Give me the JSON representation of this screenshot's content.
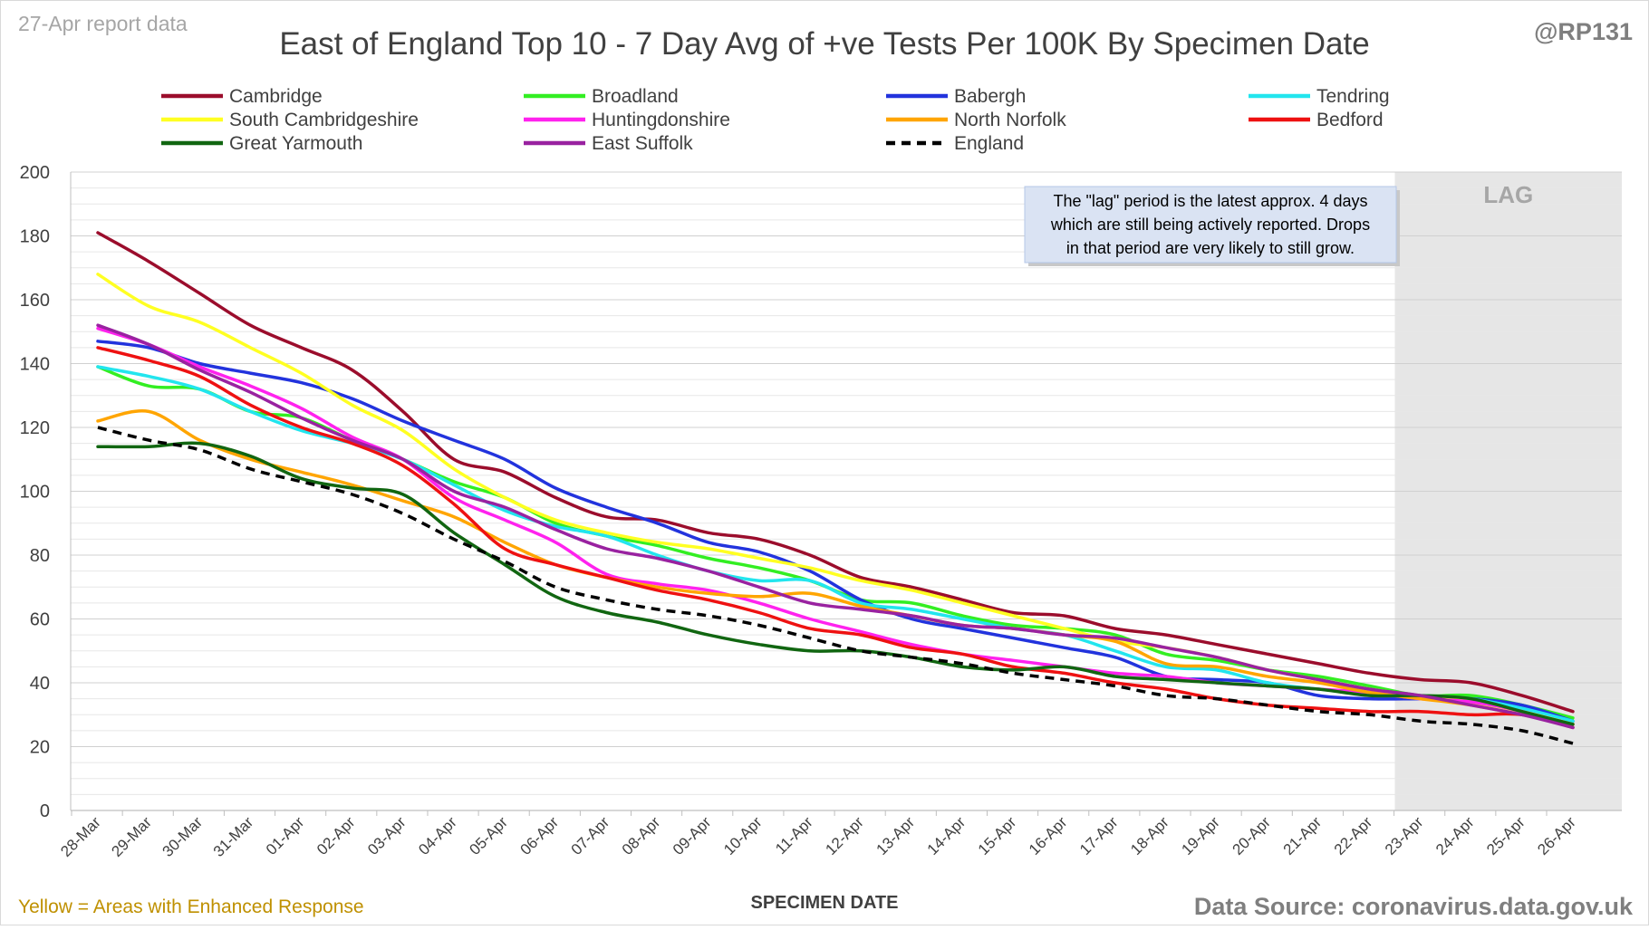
{
  "report_label": "27-Apr report data",
  "handle": "@RP131",
  "footer_left": "Yellow = Areas with Enhanced Response",
  "footer_right": "Data Source: coronavirus.data.gov.uk",
  "lag_label": "LAG",
  "annotation": [
    "The \"lag\" period is the latest approx. 4 days",
    "which are still being actively reported.  Drops",
    "in that period are very likely to still grow."
  ],
  "colors": {
    "report_label": "#a6a6a6",
    "handle": "#7f7f7f",
    "footer_left": "#bf9000",
    "footer_right": "#7f7f7f",
    "lag_shade": "#e6e6e6",
    "lag_text": "#a6a6a6",
    "annotation_bg": "#dae3f3",
    "grid": "#e7e7e7"
  },
  "chart_data": {
    "type": "line",
    "title": "East of England Top 10 - 7 Day Avg of +ve Tests Per 100K By Specimen Date",
    "xlabel": "SPECIMEN DATE",
    "ylabel": "",
    "ylim": [
      0,
      200
    ],
    "yticks": [
      0,
      20,
      40,
      60,
      80,
      100,
      120,
      140,
      160,
      180,
      200
    ],
    "grid": true,
    "legend_position": "top",
    "lag_range": [
      "23-Apr",
      "26-Apr"
    ],
    "categories": [
      "28-Mar",
      "29-Mar",
      "30-Mar",
      "31-Mar",
      "01-Apr",
      "02-Apr",
      "03-Apr",
      "04-Apr",
      "05-Apr",
      "06-Apr",
      "07-Apr",
      "08-Apr",
      "09-Apr",
      "10-Apr",
      "11-Apr",
      "12-Apr",
      "13-Apr",
      "14-Apr",
      "15-Apr",
      "16-Apr",
      "17-Apr",
      "18-Apr",
      "19-Apr",
      "20-Apr",
      "21-Apr",
      "22-Apr",
      "23-Apr",
      "24-Apr",
      "25-Apr",
      "26-Apr"
    ],
    "series": [
      {
        "name": "Cambridge",
        "color": "#9b0d2c",
        "dashed": false,
        "values": [
          181,
          172,
          162,
          152,
          145,
          138,
          125,
          110,
          106,
          98,
          92,
          91,
          87,
          85,
          80,
          73,
          70,
          66,
          62,
          61,
          57,
          55,
          52,
          49,
          46,
          43,
          41,
          40,
          36,
          31
        ]
      },
      {
        "name": "Broadland",
        "color": "#33ee22",
        "dashed": false,
        "values": [
          139,
          133,
          132,
          125,
          123,
          116,
          110,
          103,
          98,
          90,
          86,
          83,
          79,
          76,
          72,
          66,
          65,
          61,
          58,
          57,
          55,
          49,
          47,
          44,
          42,
          39,
          36,
          36,
          33,
          29
        ]
      },
      {
        "name": "Babergh",
        "color": "#2233dd",
        "dashed": false,
        "values": [
          147,
          145,
          140,
          137,
          134,
          129,
          122,
          116,
          110,
          101,
          95,
          90,
          84,
          81,
          75,
          66,
          60,
          57,
          54,
          51,
          48,
          42,
          41,
          40,
          36,
          35,
          35,
          35,
          33,
          28
        ]
      },
      {
        "name": "Tendring",
        "color": "#22e5ee",
        "dashed": false,
        "values": [
          139,
          136,
          132,
          125,
          119,
          115,
          110,
          102,
          94,
          89,
          86,
          80,
          75,
          72,
          72,
          65,
          63,
          60,
          57,
          55,
          50,
          45,
          44,
          40,
          38,
          37,
          36,
          35,
          32,
          28
        ]
      },
      {
        "name": "South Cambridgeshire",
        "color": "#ffff22",
        "dashed": false,
        "values": [
          168,
          158,
          153,
          145,
          137,
          127,
          119,
          107,
          98,
          91,
          87,
          84,
          82,
          79,
          76,
          72,
          69,
          65,
          61,
          57,
          53,
          51,
          48,
          44,
          41,
          38,
          36,
          34,
          31,
          27
        ]
      },
      {
        "name": "Huntingdonshire",
        "color": "#ff22ee",
        "dashed": false,
        "values": [
          151,
          146,
          139,
          133,
          126,
          117,
          110,
          98,
          91,
          84,
          74,
          71,
          69,
          65,
          60,
          56,
          52,
          49,
          47,
          45,
          43,
          42,
          40,
          39,
          38,
          37,
          35,
          34,
          31,
          26
        ]
      },
      {
        "name": "North Norfolk",
        "color": "#ffa500",
        "dashed": false,
        "values": [
          122,
          125,
          116,
          110,
          106,
          102,
          97,
          92,
          84,
          77,
          73,
          70,
          68,
          67,
          68,
          64,
          61,
          58,
          57,
          55,
          53,
          46,
          45,
          42,
          40,
          37,
          35,
          33,
          30,
          27
        ]
      },
      {
        "name": "Bedford",
        "color": "#ee1111",
        "dashed": false,
        "values": [
          145,
          141,
          136,
          127,
          120,
          115,
          108,
          96,
          82,
          77,
          73,
          69,
          66,
          62,
          57,
          55,
          51,
          49,
          45,
          43,
          40,
          38,
          35,
          33,
          32,
          31,
          31,
          30,
          30,
          26
        ]
      },
      {
        "name": "Great Yarmouth",
        "color": "#116611",
        "dashed": false,
        "values": [
          114,
          114,
          115,
          111,
          104,
          101,
          99,
          87,
          77,
          67,
          62,
          59,
          55,
          52,
          50,
          50,
          48,
          45,
          44,
          45,
          42,
          41,
          40,
          39,
          38,
          36,
          36,
          35,
          31,
          27
        ]
      },
      {
        "name": "East Suffolk",
        "color": "#9922a0",
        "dashed": false,
        "values": [
          152,
          146,
          138,
          131,
          123,
          116,
          110,
          100,
          95,
          88,
          82,
          79,
          75,
          70,
          65,
          63,
          61,
          58,
          57,
          55,
          54,
          51,
          48,
          44,
          41,
          38,
          36,
          33,
          30,
          26
        ]
      },
      {
        "name": "England",
        "color": "#000000",
        "dashed": true,
        "values": [
          120,
          116,
          113,
          107,
          103,
          99,
          93,
          85,
          78,
          70,
          66,
          63,
          61,
          58,
          54,
          50,
          48,
          46,
          43,
          41,
          39,
          36,
          35,
          33,
          31,
          30,
          28,
          27,
          25,
          21
        ]
      }
    ]
  }
}
